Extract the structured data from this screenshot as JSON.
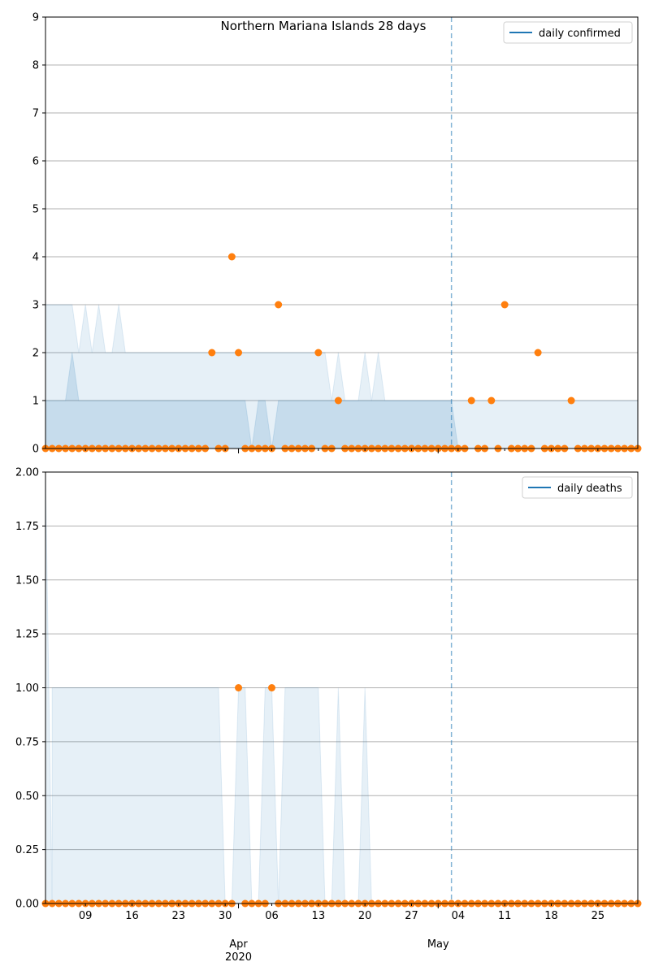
{
  "colors": {
    "points": "#ff7f0e",
    "band": "#1f77b4",
    "line": "#1f77b4",
    "grid": "#b0b0b0",
    "vline": "#1f77b4"
  },
  "x_axis": {
    "start_date": "2020-03-03",
    "end_date": "2020-05-31",
    "minor_ticks": [
      {
        "date": "2020-03-09",
        "label": "09"
      },
      {
        "date": "2020-03-16",
        "label": "16"
      },
      {
        "date": "2020-03-23",
        "label": "23"
      },
      {
        "date": "2020-03-30",
        "label": "30"
      },
      {
        "date": "2020-04-06",
        "label": "06"
      },
      {
        "date": "2020-04-13",
        "label": "13"
      },
      {
        "date": "2020-04-20",
        "label": "20"
      },
      {
        "date": "2020-04-27",
        "label": "27"
      },
      {
        "date": "2020-05-04",
        "label": "04"
      },
      {
        "date": "2020-05-11",
        "label": "11"
      },
      {
        "date": "2020-05-18",
        "label": "18"
      },
      {
        "date": "2020-05-25",
        "label": "25"
      }
    ],
    "major_ticks": [
      {
        "date": "2020-04-01",
        "label": "Apr",
        "sublabel": "2020"
      },
      {
        "date": "2020-05-01",
        "label": "May",
        "sublabel": ""
      }
    ]
  },
  "chart_data": [
    {
      "type": "scatter",
      "title": "Northern Mariana Islands 28 days",
      "legend": {
        "label": "daily confirmed",
        "placement": "top-right"
      },
      "ylim": [
        0,
        9
      ],
      "yticks": [
        0,
        1,
        2,
        3,
        4,
        5,
        6,
        7,
        8,
        9
      ],
      "ytick_labels": [
        "0",
        "1",
        "2",
        "3",
        "4",
        "5",
        "6",
        "7",
        "8",
        "9"
      ],
      "grid": true,
      "vline_date": "2020-05-03",
      "points": [
        [
          "2020-03-28",
          2
        ],
        [
          "2020-03-31",
          4
        ],
        [
          "2020-04-01",
          2
        ],
        [
          "2020-04-07",
          3
        ],
        [
          "2020-04-13",
          2
        ],
        [
          "2020-04-16",
          1
        ],
        [
          "2020-05-06",
          1
        ],
        [
          "2020-05-09",
          1
        ],
        [
          "2020-05-11",
          3
        ],
        [
          "2020-05-16",
          2
        ],
        [
          "2020-05-21",
          1
        ]
      ],
      "band_upper": [
        [
          "2020-03-03",
          3
        ],
        [
          "2020-03-07",
          3
        ],
        [
          "2020-03-08",
          2
        ],
        [
          "2020-03-09",
          3
        ],
        [
          "2020-03-10",
          2
        ],
        [
          "2020-03-11",
          3
        ],
        [
          "2020-03-12",
          2
        ],
        [
          "2020-03-13",
          2
        ],
        [
          "2020-03-14",
          3
        ],
        [
          "2020-03-15",
          2
        ],
        [
          "2020-04-14",
          2
        ],
        [
          "2020-04-15",
          1
        ],
        [
          "2020-04-16",
          2
        ],
        [
          "2020-04-17",
          1
        ],
        [
          "2020-04-19",
          1
        ],
        [
          "2020-04-20",
          2
        ],
        [
          "2020-04-21",
          1
        ],
        [
          "2020-04-22",
          2
        ],
        [
          "2020-04-23",
          1
        ],
        [
          "2020-05-03",
          1
        ],
        [
          "2020-05-04",
          1
        ],
        [
          "2020-05-31",
          1
        ]
      ],
      "band_mid": [
        [
          "2020-03-03",
          1
        ],
        [
          "2020-03-06",
          1
        ],
        [
          "2020-03-07",
          2
        ],
        [
          "2020-03-08",
          1
        ],
        [
          "2020-04-02",
          1
        ],
        [
          "2020-04-03",
          0
        ],
        [
          "2020-04-04",
          1
        ],
        [
          "2020-04-05",
          1
        ],
        [
          "2020-04-06",
          0
        ],
        [
          "2020-04-07",
          1
        ],
        [
          "2020-05-03",
          1
        ],
        [
          "2020-05-04",
          0
        ],
        [
          "2020-05-31",
          0
        ]
      ]
    },
    {
      "type": "scatter",
      "title": "",
      "legend": {
        "label": "daily deaths",
        "placement": "top-right"
      },
      "ylim": [
        0,
        2
      ],
      "yticks": [
        0,
        0.25,
        0.5,
        0.75,
        1,
        1.25,
        1.5,
        1.75,
        2
      ],
      "ytick_labels": [
        "0.00",
        "0.25",
        "0.50",
        "0.75",
        "1.00",
        "1.25",
        "1.50",
        "1.75",
        "2.00"
      ],
      "grid": true,
      "vline_date": "2020-05-03",
      "points": [
        [
          "2020-04-01",
          1
        ],
        [
          "2020-04-06",
          1
        ]
      ],
      "band_upper": [
        [
          "2020-03-03",
          2
        ],
        [
          "2020-03-04",
          0
        ],
        [
          "2020-03-04",
          1
        ],
        [
          "2020-03-29",
          1
        ],
        [
          "2020-03-30",
          0
        ],
        [
          "2020-03-31",
          0
        ],
        [
          "2020-04-01",
          1
        ],
        [
          "2020-04-02",
          1
        ],
        [
          "2020-04-03",
          0
        ],
        [
          "2020-04-04",
          0
        ],
        [
          "2020-04-05",
          1
        ],
        [
          "2020-04-06",
          1
        ],
        [
          "2020-04-07",
          0
        ],
        [
          "2020-04-08",
          1
        ],
        [
          "2020-04-13",
          1
        ],
        [
          "2020-04-14",
          0
        ],
        [
          "2020-04-15",
          0
        ],
        [
          "2020-04-16",
          1
        ],
        [
          "2020-04-17",
          0
        ],
        [
          "2020-04-19",
          0
        ],
        [
          "2020-04-20",
          1
        ],
        [
          "2020-04-21",
          0
        ],
        [
          "2020-05-31",
          0
        ]
      ],
      "band_mid": []
    }
  ]
}
